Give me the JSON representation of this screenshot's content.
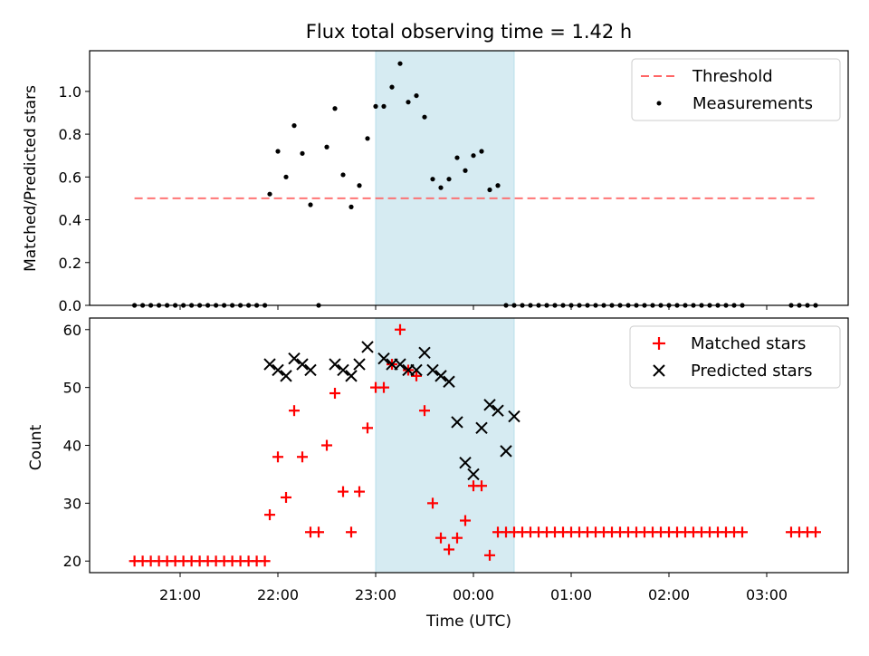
{
  "chart_data": [
    {
      "type": "scatter",
      "title": "Flux total observing time = 1.42 h",
      "ylabel": "Matched/Predicted stars",
      "xlabel": "",
      "ylim": [
        0,
        1.19
      ],
      "yticks": [
        "0.0",
        "0.2",
        "0.4",
        "0.6",
        "0.8",
        "1.0"
      ],
      "yticks_values": [
        0,
        0.2,
        0.4,
        0.6,
        0.8,
        1.0
      ],
      "xticks_values": [
        "21:00",
        "22:00",
        "23:00",
        "00:00",
        "01:00",
        "02:00",
        "03:00"
      ],
      "shaded_region": {
        "start": "23:00",
        "end": "00:25",
        "color": "#add8e6"
      },
      "threshold": {
        "name": "Threshold",
        "y": 0.5,
        "x_start": "20:32",
        "x_end": "03:30",
        "color": "#ff6666"
      },
      "legend": {
        "position": "upper right",
        "entries": [
          "Threshold",
          "Measurements"
        ]
      },
      "series": [
        {
          "name": "Measurements",
          "marker": "dot",
          "color": "#000000",
          "x": [
            "20:32",
            "20:37",
            "20:42",
            "20:47",
            "20:52",
            "20:57",
            "21:02",
            "21:07",
            "21:12",
            "21:17",
            "21:22",
            "21:27",
            "21:32",
            "21:37",
            "21:42",
            "21:47",
            "21:52",
            "21:55",
            "22:00",
            "22:05",
            "22:10",
            "22:15",
            "22:20",
            "22:25",
            "22:30",
            "22:35",
            "22:40",
            "22:45",
            "22:50",
            "22:55",
            "23:00",
            "23:05",
            "23:10",
            "23:15",
            "23:20",
            "23:25",
            "23:30",
            "23:35",
            "23:40",
            "23:45",
            "23:50",
            "23:55",
            "00:00",
            "00:05",
            "00:10",
            "00:15",
            "00:20",
            "00:25",
            "00:30",
            "00:35",
            "00:40",
            "00:45",
            "00:50",
            "00:55",
            "01:00",
            "01:05",
            "01:10",
            "01:15",
            "01:20",
            "01:25",
            "01:30",
            "01:35",
            "01:40",
            "01:45",
            "01:50",
            "01:55",
            "02:00",
            "02:05",
            "02:10",
            "02:15",
            "02:20",
            "02:25",
            "02:30",
            "02:35",
            "02:40",
            "02:45",
            "03:15",
            "03:20",
            "03:25",
            "03:30"
          ],
          "y": [
            0,
            0,
            0,
            0,
            0,
            0,
            0,
            0,
            0,
            0,
            0,
            0,
            0,
            0,
            0,
            0,
            0,
            0.52,
            0.72,
            0.6,
            0.84,
            0.71,
            0.47,
            0,
            0.74,
            0.92,
            0.61,
            0.46,
            0.56,
            0.78,
            0.93,
            0.93,
            1.02,
            1.13,
            0.95,
            0.98,
            0.88,
            0.59,
            0.55,
            0.59,
            0.69,
            0.63,
            0.7,
            0.72,
            0.54,
            0.56,
            0,
            0,
            0,
            0,
            0,
            0,
            0,
            0,
            0,
            0,
            0,
            0,
            0,
            0,
            0,
            0,
            0,
            0,
            0,
            0,
            0,
            0,
            0,
            0,
            0,
            0,
            0,
            0,
            0,
            0,
            0,
            0,
            0,
            0
          ]
        }
      ]
    },
    {
      "type": "scatter",
      "title": "",
      "xlabel": "Time (UTC)",
      "ylabel": "Count",
      "ylim": [
        18,
        62
      ],
      "yticks": [
        "20",
        "30",
        "40",
        "50",
        "60"
      ],
      "yticks_values": [
        20,
        30,
        40,
        50,
        60
      ],
      "xticks": [
        "21:00",
        "22:00",
        "23:00",
        "00:00",
        "01:00",
        "02:00",
        "03:00"
      ],
      "shaded_region": {
        "start": "23:00",
        "end": "00:25",
        "color": "#add8e6"
      },
      "legend": {
        "position": "upper right",
        "entries": [
          "Matched stars",
          "Predicted stars"
        ]
      },
      "series": [
        {
          "name": "Matched stars",
          "marker": "plus",
          "color": "#ff0000",
          "x": [
            "20:32",
            "20:37",
            "20:42",
            "20:47",
            "20:52",
            "20:57",
            "21:02",
            "21:07",
            "21:12",
            "21:17",
            "21:22",
            "21:27",
            "21:32",
            "21:37",
            "21:42",
            "21:47",
            "21:52",
            "21:55",
            "22:00",
            "22:05",
            "22:10",
            "22:15",
            "22:20",
            "22:25",
            "22:30",
            "22:35",
            "22:40",
            "22:45",
            "22:50",
            "22:55",
            "23:00",
            "23:05",
            "23:10",
            "23:15",
            "23:20",
            "23:25",
            "23:30",
            "23:35",
            "23:40",
            "23:45",
            "23:50",
            "23:55",
            "00:00",
            "00:05",
            "00:10",
            "00:15",
            "00:20",
            "00:25",
            "00:30",
            "00:35",
            "00:40",
            "00:45",
            "00:50",
            "00:55",
            "01:00",
            "01:05",
            "01:10",
            "01:15",
            "01:20",
            "01:25",
            "01:30",
            "01:35",
            "01:40",
            "01:45",
            "01:50",
            "01:55",
            "02:00",
            "02:05",
            "02:10",
            "02:15",
            "02:20",
            "02:25",
            "02:30",
            "02:35",
            "02:40",
            "02:45",
            "03:15",
            "03:20",
            "03:25",
            "03:30"
          ],
          "y": [
            20,
            20,
            20,
            20,
            20,
            20,
            20,
            20,
            20,
            20,
            20,
            20,
            20,
            20,
            20,
            20,
            20,
            28,
            38,
            31,
            46,
            38,
            25,
            25,
            40,
            49,
            32,
            25,
            32,
            43,
            50,
            50,
            54,
            60,
            53,
            52,
            46,
            30,
            24,
            22,
            24,
            27,
            33,
            33,
            21,
            25,
            25,
            25,
            25,
            25,
            25,
            25,
            25,
            25,
            25,
            25,
            25,
            25,
            25,
            25,
            25,
            25,
            25,
            25,
            25,
            25,
            25,
            25,
            25,
            25,
            25,
            25,
            25,
            25,
            25,
            25,
            25,
            25,
            25,
            25
          ]
        },
        {
          "name": "Predicted stars",
          "marker": "x",
          "color": "#000000",
          "x": [
            "21:55",
            "22:00",
            "22:05",
            "22:10",
            "22:15",
            "22:20",
            "22:35",
            "22:40",
            "22:45",
            "22:50",
            "22:55",
            "23:05",
            "23:10",
            "23:15",
            "23:20",
            "23:25",
            "23:30",
            "23:35",
            "23:40",
            "23:45",
            "23:50",
            "23:55",
            "00:00",
            "00:05",
            "00:10",
            "00:15",
            "00:20",
            "00:25"
          ],
          "y": [
            54,
            53,
            52,
            55,
            54,
            53,
            54,
            53,
            52,
            54,
            57,
            55,
            54,
            54,
            53,
            53,
            56,
            53,
            52,
            51,
            44,
            37,
            35,
            43,
            47,
            46,
            39,
            45
          ]
        }
      ]
    }
  ]
}
